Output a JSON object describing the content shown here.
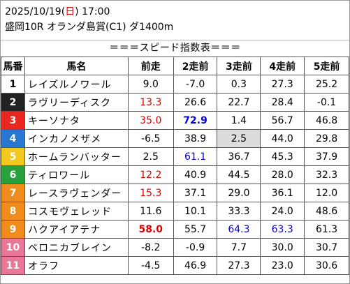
{
  "header": {
    "date": "2025/10/19",
    "weekday_open": "(",
    "weekday": "日",
    "weekday_close": ")",
    "time": "17:00",
    "race": "盛岡10R オランダ島賞(C1) ダ1400m"
  },
  "banner": "＝＝＝スピード指数表＝＝＝",
  "columns": [
    "馬番",
    "馬名",
    "前走",
    "2走前",
    "3走前",
    "4走前",
    "5走前"
  ],
  "colors": {
    "red": "#e00000",
    "blue": "#0000e0",
    "highlight": "#dcdcdc",
    "gate": [
      "#ffffff",
      "#222222",
      "#e8281e",
      "#2878d2",
      "#f0c81e",
      "#28a03c",
      "#f08c1e",
      "#e87896"
    ]
  },
  "rows": [
    {
      "no": "1",
      "name": "レイズルノワール",
      "vals": [
        "9.0",
        "-7.0",
        "0.3",
        "27.3",
        "25.2"
      ]
    },
    {
      "no": "2",
      "name": "ラヴリーディスク",
      "vals": [
        "13.3",
        "26.6",
        "22.7",
        "28.4",
        "-0.1"
      ]
    },
    {
      "no": "3",
      "name": "キーソナタ",
      "vals": [
        "35.0",
        "72.9",
        "1.4",
        "56.7",
        "46.8"
      ]
    },
    {
      "no": "4",
      "name": "インカノメザメ",
      "vals": [
        "-6.5",
        "38.9",
        "2.5",
        "44.0",
        "29.8"
      ]
    },
    {
      "no": "5",
      "name": "ホームランバッター",
      "vals": [
        "2.5",
        "61.1",
        "36.7",
        "45.3",
        "37.9"
      ]
    },
    {
      "no": "6",
      "name": "ティロワール",
      "vals": [
        "12.2",
        "40.9",
        "44.5",
        "28.0",
        "32.3"
      ]
    },
    {
      "no": "7",
      "name": "レースラヴェンダー",
      "vals": [
        "15.3",
        "37.1",
        "29.0",
        "36.1",
        "12.0"
      ]
    },
    {
      "no": "8",
      "name": "コスモヴェレッド",
      "vals": [
        "11.6",
        "10.1",
        "33.3",
        "24.0",
        "48.6"
      ]
    },
    {
      "no": "9",
      "name": "ハクアイアテナ",
      "vals": [
        "58.0",
        "55.7",
        "64.3",
        "63.3",
        "61.3"
      ]
    },
    {
      "no": "10",
      "name": "ベロニカブレイン",
      "vals": [
        "-8.2",
        "-0.9",
        "7.7",
        "30.0",
        "30.7"
      ]
    },
    {
      "no": "11",
      "name": "オラフ",
      "vals": [
        "-4.5",
        "46.9",
        "27.3",
        "23.0",
        "30.6"
      ]
    }
  ]
}
